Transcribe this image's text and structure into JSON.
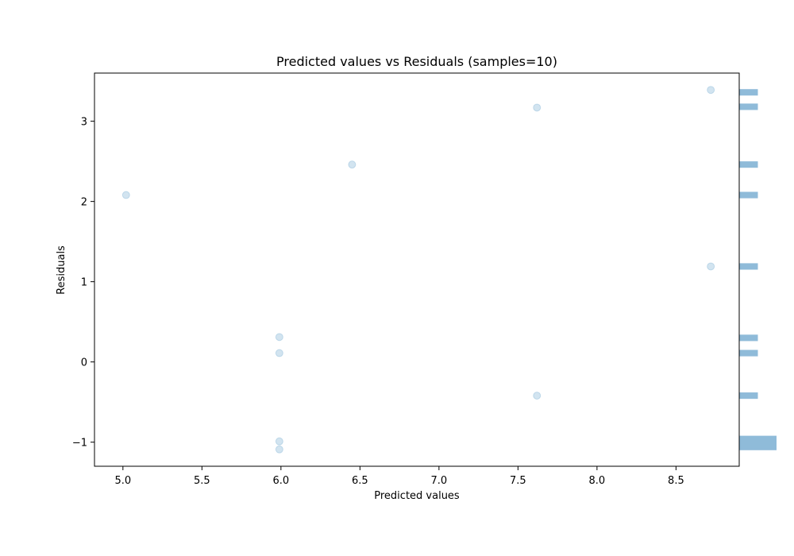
{
  "chart_data": {
    "type": "scatter",
    "title": "Predicted values vs Residuals (samples=10)",
    "xlabel": "Predicted values",
    "ylabel": "Residuals",
    "xlim": [
      4.82,
      8.9
    ],
    "ylim": [
      -1.3,
      3.6
    ],
    "xticks": [
      5.0,
      5.5,
      6.0,
      6.5,
      7.0,
      7.5,
      8.0,
      8.5
    ],
    "xtick_labels": [
      "5.0",
      "5.5",
      "6.0",
      "6.5",
      "7.0",
      "7.5",
      "8.0",
      "8.5"
    ],
    "yticks": [
      -1,
      0,
      1,
      2,
      3
    ],
    "ytick_labels": [
      "−1",
      "0",
      "1",
      "2",
      "3"
    ],
    "points": [
      {
        "x": 5.02,
        "y": 2.08
      },
      {
        "x": 5.99,
        "y": 0.31
      },
      {
        "x": 5.99,
        "y": 0.11
      },
      {
        "x": 5.99,
        "y": -0.99
      },
      {
        "x": 5.99,
        "y": -1.09
      },
      {
        "x": 6.45,
        "y": 2.46
      },
      {
        "x": 7.62,
        "y": 3.17
      },
      {
        "x": 7.62,
        "y": -0.42
      },
      {
        "x": 8.72,
        "y": 3.39
      },
      {
        "x": 8.72,
        "y": 1.19
      }
    ],
    "marginal_histogram": {
      "orientation": "horizontal",
      "side": "right",
      "bins": [
        {
          "y_low": -1.1,
          "y_high": -0.92,
          "count": 2
        },
        {
          "y_low": -0.46,
          "y_high": -0.38,
          "count": 1
        },
        {
          "y_low": 0.07,
          "y_high": 0.15,
          "count": 1
        },
        {
          "y_low": 0.26,
          "y_high": 0.34,
          "count": 1
        },
        {
          "y_low": 1.15,
          "y_high": 1.23,
          "count": 1
        },
        {
          "y_low": 2.04,
          "y_high": 2.12,
          "count": 1
        },
        {
          "y_low": 2.42,
          "y_high": 2.5,
          "count": 1
        },
        {
          "y_low": 3.14,
          "y_high": 3.22,
          "count": 1
        },
        {
          "y_low": 3.32,
          "y_high": 3.4,
          "count": 1
        }
      ]
    },
    "point_color": "#1f77b4",
    "point_alpha": 0.2,
    "hist_color": "#1f77b4",
    "hist_alpha": 0.5,
    "grid": false,
    "legend": "none"
  }
}
